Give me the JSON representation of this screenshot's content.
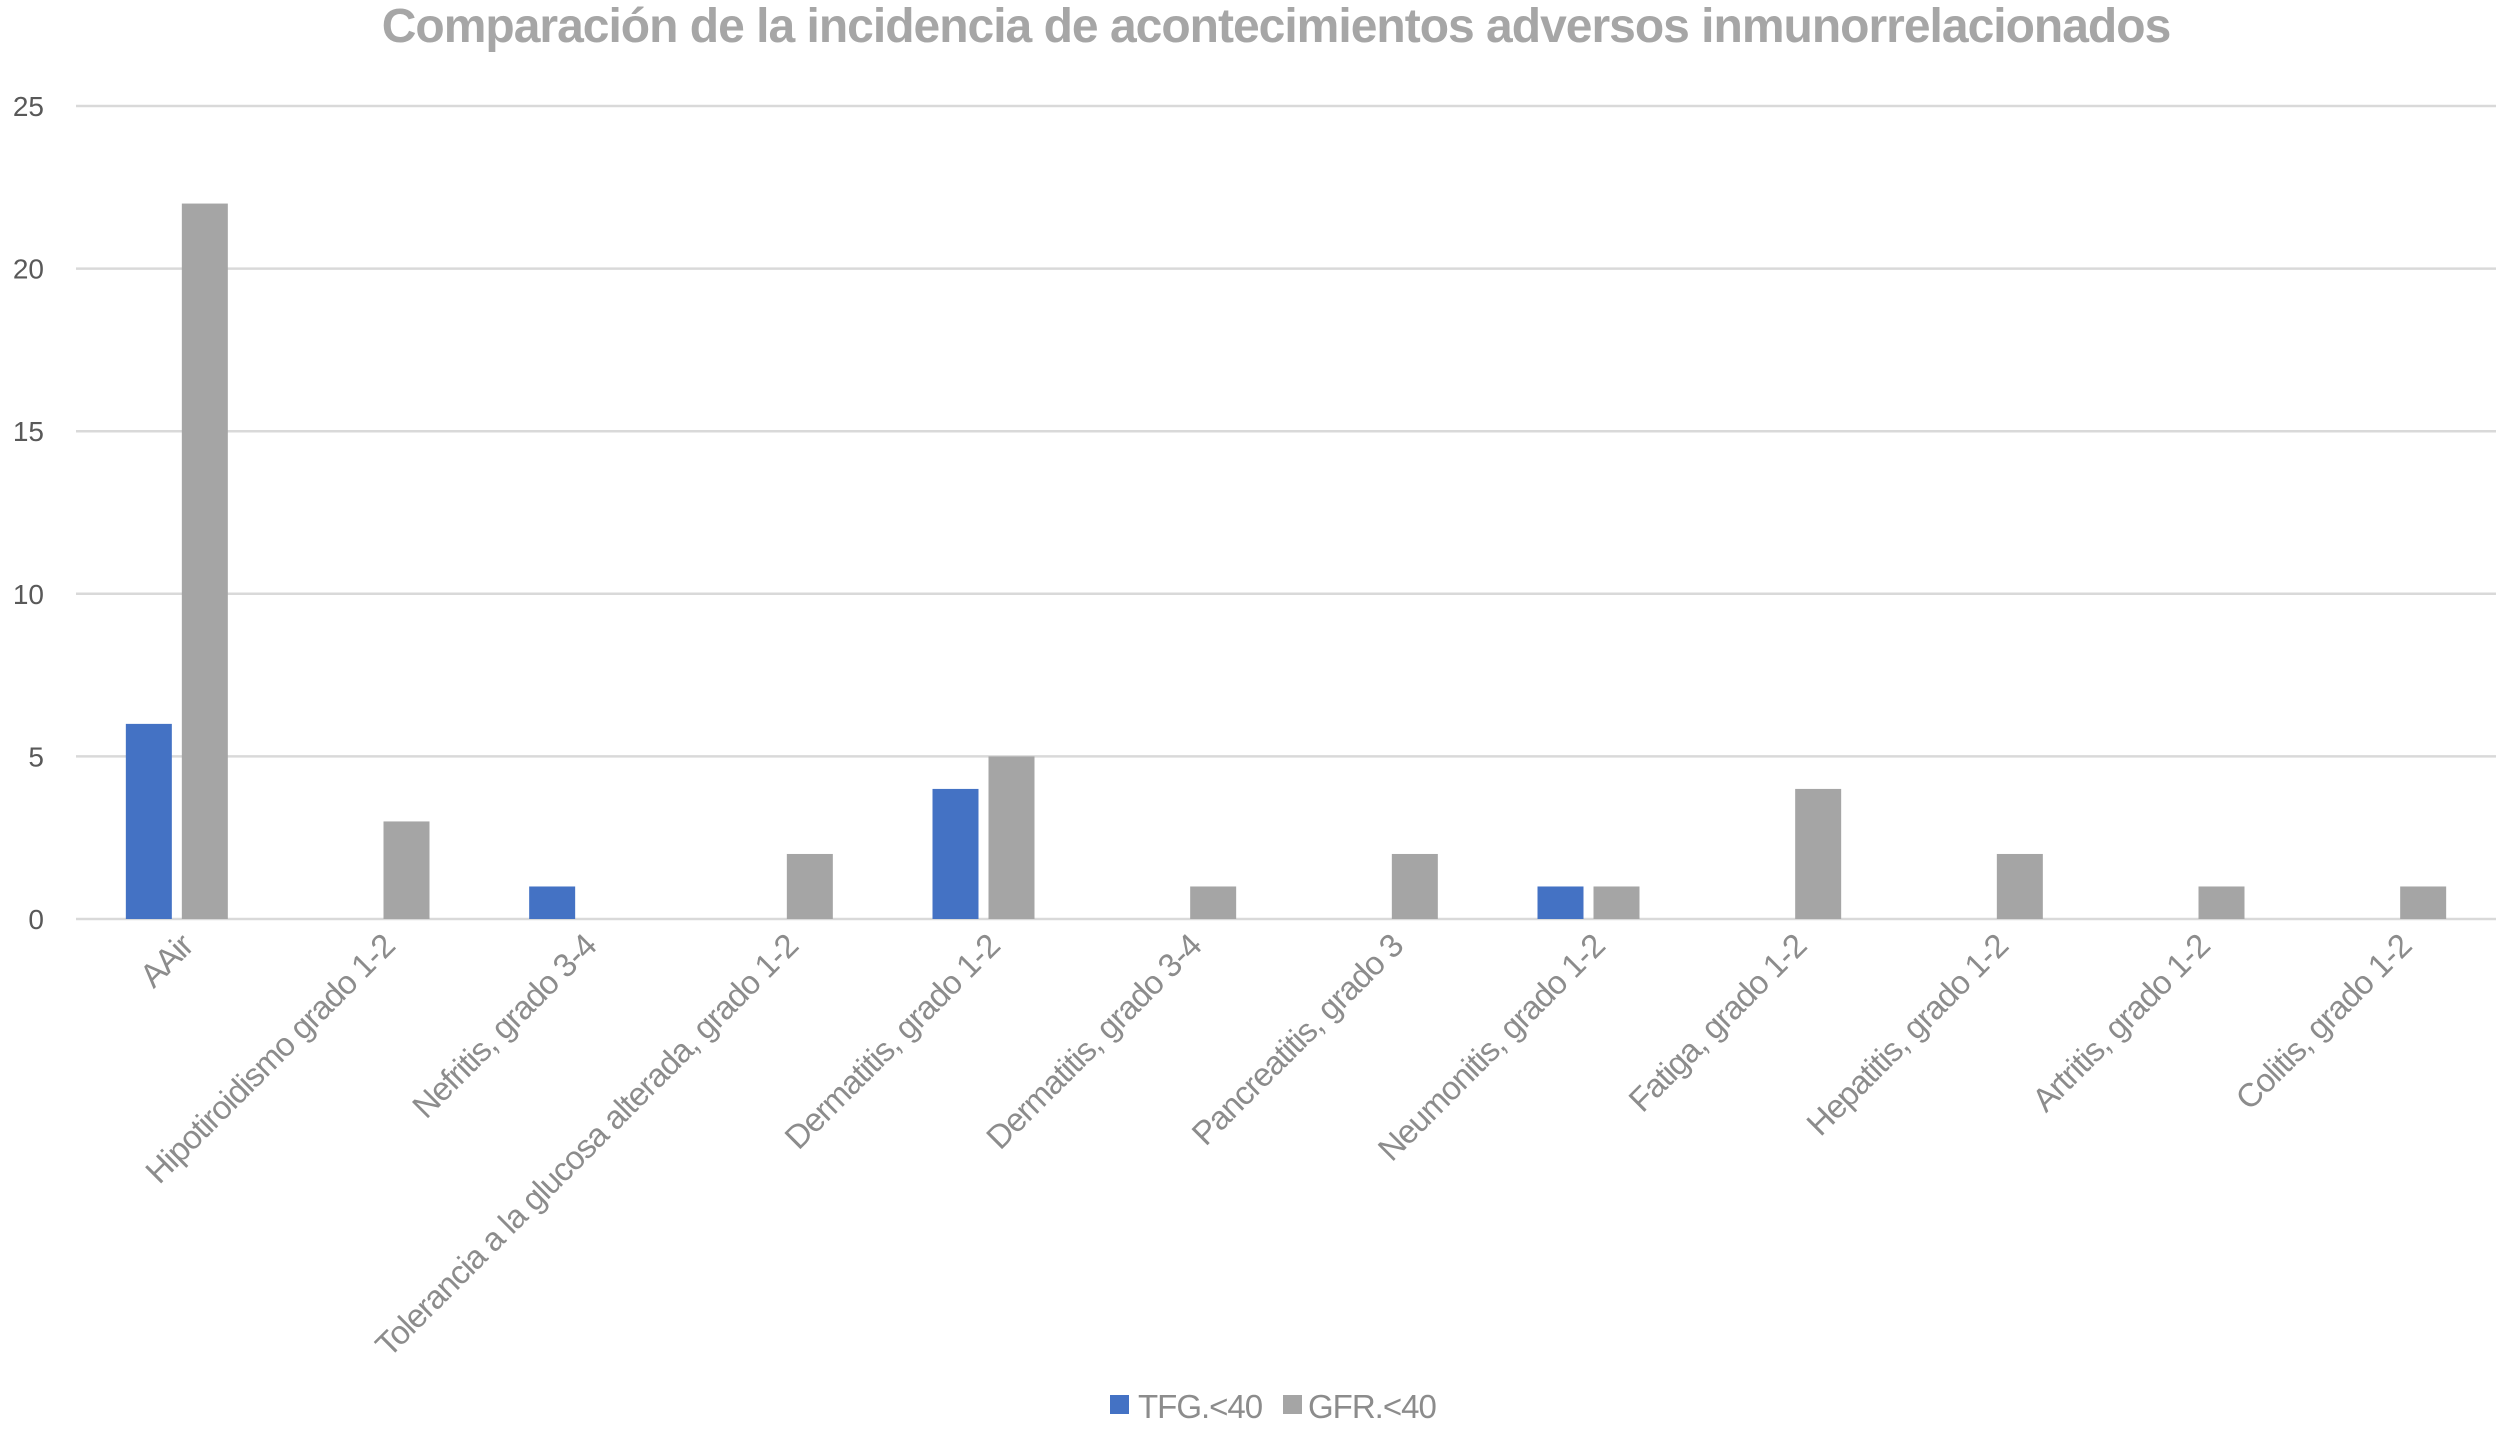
{
  "chart_data": {
    "type": "bar",
    "title": "Comparación de la incidencia de acontecimientos adversos inmunorrelacionados",
    "xlabel": "",
    "ylabel": "",
    "ylim": [
      0,
      25
    ],
    "yticks": [
      0,
      5,
      10,
      15,
      20,
      25
    ],
    "grid": true,
    "legend_position": "bottom",
    "categories": [
      "AAir",
      "Hipotiroidismo grado 1-2",
      "Nefritis, grado 3-4",
      "Tolerancia a la glucosa alterada, grado 1-2",
      "Dermatitis, grado 1-2",
      "Dermatitis, grado 3-4",
      "Pancreatitis, grado 3",
      "Neumonitis, grado 1-2",
      "Fatiga, grado 1-2",
      "Hepatitis, grado 1-2",
      "Artritis, grado 1-2",
      "Colitis, grado 1-2"
    ],
    "series": [
      {
        "name": "TFG.<40",
        "color": "#4472c4",
        "values": [
          6,
          0,
          1,
          0,
          4,
          0,
          0,
          1,
          0,
          0,
          0,
          0
        ]
      },
      {
        "name": "GFR.<40",
        "color": "#a5a5a5",
        "values": [
          22,
          3,
          0,
          2,
          5,
          1,
          2,
          1,
          4,
          2,
          1,
          1
        ]
      }
    ]
  }
}
